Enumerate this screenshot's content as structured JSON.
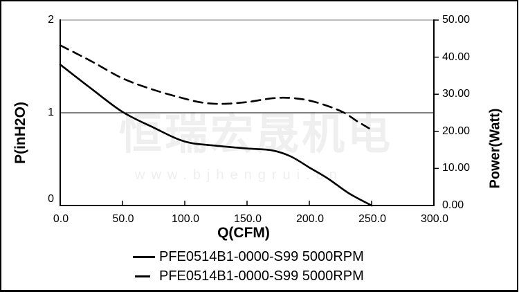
{
  "watermark": {
    "brand": "恒瑞宏晟机电",
    "url": "www.bjhengrui.cn"
  },
  "colors": {
    "curve": "#000000",
    "axis": "#000000",
    "plot_top_border": "#a6a6a6",
    "reference_line": "#000000",
    "watermark": "#efefef",
    "background": "#ffffff",
    "text": "#000000"
  },
  "chart_data": {
    "type": "line",
    "title": "",
    "xlabel": "Q(CFM)",
    "ylabel_left": "P(inH2O)",
    "ylabel_right": "Power(Watt)",
    "xlim": [
      0,
      300
    ],
    "ylim_left": [
      0,
      2
    ],
    "ylim_right": [
      0,
      50
    ],
    "grid": "off",
    "legend_position": "bottom-center",
    "x_tick_values": [
      0,
      50,
      100,
      150,
      200,
      250,
      300
    ],
    "x_tick_labels": [
      "0.0",
      "50.0",
      "100.0",
      "150.0",
      "200.0",
      "250.0",
      "300.0"
    ],
    "y_left_tick_values": [
      0,
      1,
      2
    ],
    "y_left_tick_labels": [
      "0",
      "1",
      "2"
    ],
    "y_right_tick_values": [
      0,
      10,
      20,
      30,
      40,
      50
    ],
    "y_right_tick_labels": [
      "0.00",
      "10.00",
      "20.00",
      "30.00",
      "40.00",
      "50.00"
    ],
    "reference_line_left_value": 1,
    "series": [
      {
        "name": "PFE0514B1-0000-S99 5000RPM",
        "line_style": "solid",
        "axis": "left",
        "color": "#000000",
        "points": [
          [
            0,
            1.52
          ],
          [
            25,
            1.26
          ],
          [
            50,
            1.01
          ],
          [
            75,
            0.84
          ],
          [
            100,
            0.69
          ],
          [
            125,
            0.645
          ],
          [
            150,
            0.615
          ],
          [
            170,
            0.595
          ],
          [
            185,
            0.53
          ],
          [
            200,
            0.41
          ],
          [
            215,
            0.29
          ],
          [
            232,
            0.13
          ],
          [
            250,
            0.0
          ]
        ]
      },
      {
        "name": "PFE0514B1-0000-S99 5000RPM",
        "line_style": "dashed",
        "axis": "right",
        "color": "#000000",
        "points": [
          [
            0,
            43.2
          ],
          [
            25,
            38.9
          ],
          [
            50,
            34.3
          ],
          [
            75,
            31.2
          ],
          [
            100,
            28.8
          ],
          [
            115,
            27.7
          ],
          [
            130,
            27.4
          ],
          [
            150,
            27.9
          ],
          [
            170,
            28.9
          ],
          [
            185,
            29.0
          ],
          [
            200,
            28.3
          ],
          [
            215,
            26.8
          ],
          [
            228,
            25.0
          ],
          [
            238,
            22.8
          ],
          [
            248,
            20.8
          ]
        ]
      }
    ]
  }
}
